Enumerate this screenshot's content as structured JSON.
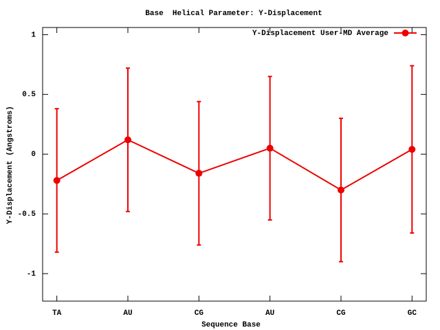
{
  "chart_data": {
    "type": "line",
    "title": "Base  Helical Parameter: Y-Displacement",
    "x_label": "Sequence Base",
    "y_label": "Y-Displacement (Angstroms)",
    "categories": [
      "TA",
      "AU",
      "CG",
      "AU",
      "CG",
      "GC"
    ],
    "series": [
      {
        "name": "Y-Displacement User-MD Average",
        "color": "#ee0000",
        "values": [
          -0.22,
          0.12,
          -0.16,
          0.05,
          -0.3,
          0.04
        ],
        "errors": [
          0.6,
          0.6,
          0.6,
          0.6,
          0.6,
          0.7
        ]
      }
    ],
    "ylim": [
      -1.23,
      1.06
    ],
    "yticks": [
      -1,
      -0.5,
      0,
      0.5,
      1
    ],
    "legend": "top-right",
    "grid": false
  }
}
